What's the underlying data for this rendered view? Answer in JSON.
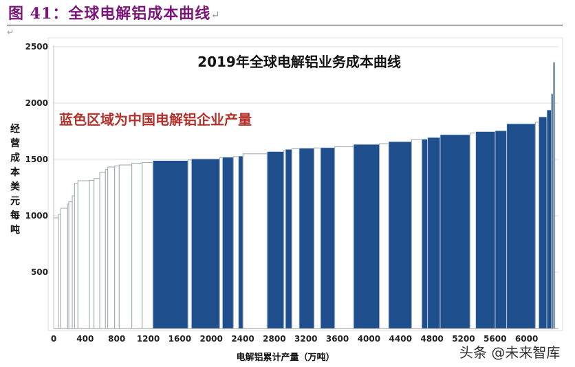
{
  "figure": {
    "title": "图 41：全球电解铝成本曲线",
    "return_mark": "↵"
  },
  "watermark": "头条 @未来智库",
  "colors": {
    "china": "#1f4e8c",
    "other": "#ffffff",
    "other_stroke": "#9aa8a8",
    "title": "#7a1679",
    "annotation": "#b5302a"
  },
  "chart_data": {
    "type": "bar",
    "subtype": "cost-curve (variable-width bars)",
    "title": "2019年全球电解铝业务成本曲线",
    "annotation": "蓝色区域为中国电解铝企业产量",
    "xlabel": "电解铝累计产量（万吨）",
    "ylabel": "经营成本美元每吨",
    "xlim": [
      0,
      6360
    ],
    "ylim": [
      0,
      2500
    ],
    "xticks": [
      0,
      400,
      800,
      1200,
      1600,
      2000,
      2400,
      2800,
      3200,
      3600,
      4000,
      4400,
      4800,
      5200,
      5600,
      6000
    ],
    "yticks": [
      500,
      1000,
      1500,
      2000,
      2500
    ],
    "grid": "horizontal",
    "segments_fields": [
      "start",
      "end",
      "cost",
      "china"
    ],
    "segments": [
      [
        0,
        61,
        982,
        0
      ],
      [
        61,
        90,
        1014,
        0
      ],
      [
        90,
        177,
        1067,
        0
      ],
      [
        177,
        192,
        1104,
        0
      ],
      [
        192,
        236,
        1124,
        0
      ],
      [
        236,
        265,
        1177,
        0
      ],
      [
        265,
        308,
        1288,
        0
      ],
      [
        308,
        454,
        1311,
        0
      ],
      [
        454,
        512,
        1315,
        0
      ],
      [
        512,
        585,
        1331,
        0
      ],
      [
        585,
        657,
        1386,
        0
      ],
      [
        657,
        687,
        1410,
        0
      ],
      [
        687,
        774,
        1433,
        0
      ],
      [
        774,
        832,
        1443,
        0
      ],
      [
        832,
        992,
        1451,
        0
      ],
      [
        992,
        1123,
        1467,
        0
      ],
      [
        1123,
        1259,
        1472,
        0
      ],
      [
        1259,
        1704,
        1490,
        1
      ],
      [
        1704,
        1748,
        1495,
        0
      ],
      [
        1748,
        2106,
        1505,
        1
      ],
      [
        2106,
        2141,
        1515,
        0
      ],
      [
        2141,
        2280,
        1520,
        1
      ],
      [
        2280,
        2345,
        1525,
        0
      ],
      [
        2345,
        2402,
        1530,
        1
      ],
      [
        2402,
        2708,
        1550,
        0
      ],
      [
        2708,
        2920,
        1570,
        1
      ],
      [
        2920,
        2941,
        1580,
        0
      ],
      [
        2941,
        3022,
        1590,
        1
      ],
      [
        3022,
        3115,
        1595,
        0
      ],
      [
        3115,
        3304,
        1600,
        1
      ],
      [
        3304,
        3386,
        1602,
        0
      ],
      [
        3386,
        3566,
        1605,
        1
      ],
      [
        3566,
        3805,
        1612,
        0
      ],
      [
        3805,
        4133,
        1634,
        1
      ],
      [
        4133,
        4250,
        1640,
        0
      ],
      [
        4250,
        4541,
        1658,
        1
      ],
      [
        4541,
        4671,
        1676,
        0
      ],
      [
        4671,
        4744,
        1680,
        1
      ],
      [
        4744,
        4904,
        1695,
        1
      ],
      [
        4904,
        5282,
        1720,
        1
      ],
      [
        5282,
        5355,
        1735,
        0
      ],
      [
        5355,
        5602,
        1747,
        1
      ],
      [
        5602,
        5748,
        1755,
        1
      ],
      [
        5748,
        6111,
        1817,
        1
      ],
      [
        6111,
        6155,
        1830,
        0
      ],
      [
        6155,
        6257,
        1878,
        1
      ],
      [
        6257,
        6315,
        1939,
        1
      ],
      [
        6315,
        6340,
        2080,
        0
      ],
      [
        6340,
        6358,
        2360,
        0
      ]
    ]
  }
}
